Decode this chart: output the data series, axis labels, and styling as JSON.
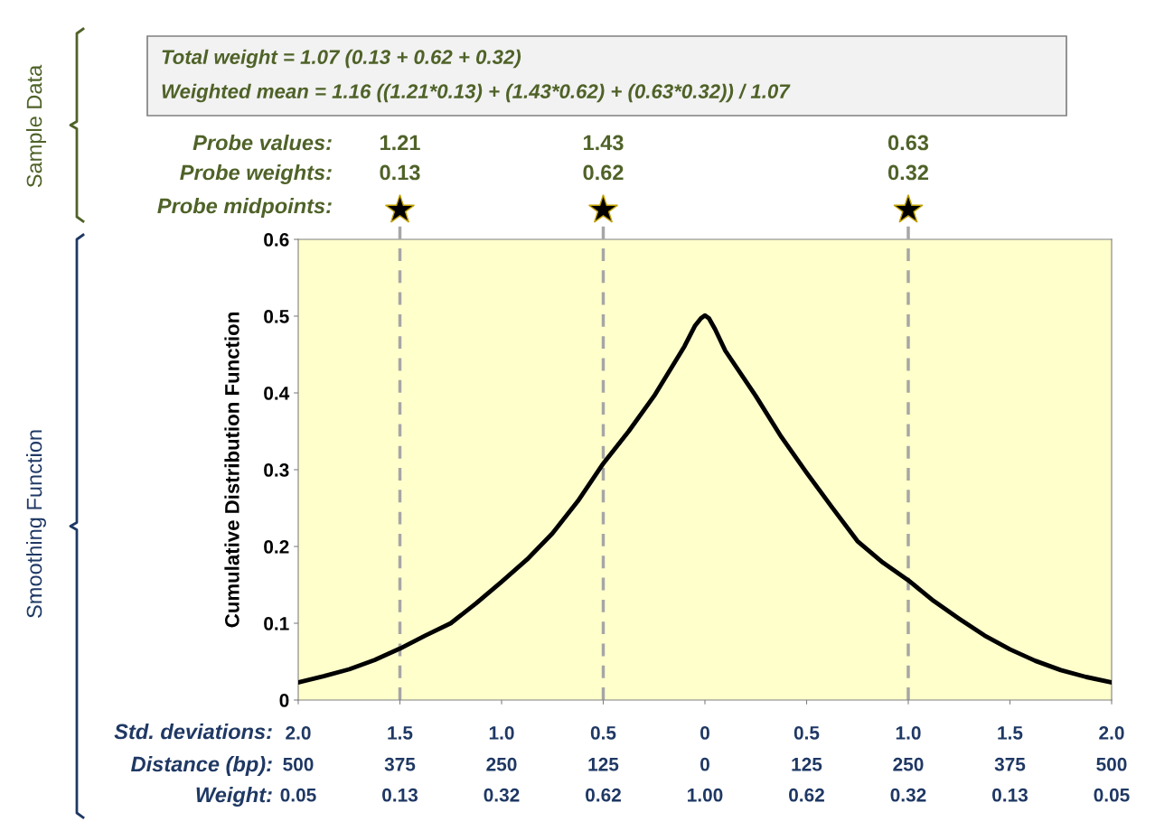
{
  "chart_data": {
    "type": "line",
    "ylabel": "Cumulative Distribution Function",
    "x": [
      -2,
      -1.875,
      -1.75,
      -1.625,
      -1.5,
      -1.375,
      -1.25,
      -1.125,
      -1,
      -0.875,
      -0.75,
      -0.625,
      -0.5,
      -0.375,
      -0.25,
      -0.1,
      -0.05,
      -0.02,
      0,
      0.02,
      0.05,
      0.1,
      0.25,
      0.375,
      0.5,
      0.625,
      0.75,
      0.875,
      1,
      1.125,
      1.25,
      1.375,
      1.5,
      1.625,
      1.75,
      1.875,
      2
    ],
    "series": [
      {
        "color": "#000000",
        "values": [
          0.023,
          0.031,
          0.04,
          0.052,
          0.067,
          0.084,
          0.1,
          0.126,
          0.154,
          0.183,
          0.217,
          0.259,
          0.308,
          0.35,
          0.396,
          0.461,
          0.487,
          0.497,
          0.501,
          0.497,
          0.483,
          0.455,
          0.396,
          0.343,
          0.296,
          0.251,
          0.207,
          0.179,
          0.156,
          0.129,
          0.106,
          0.084,
          0.066,
          0.051,
          0.039,
          0.03,
          0.023
        ]
      }
    ],
    "xlim": [
      -2,
      2
    ],
    "xticks": [
      {
        "value": -2,
        "label": "2.0"
      },
      {
        "value": -1.5,
        "label": "1.5"
      },
      {
        "value": -1,
        "label": "1.0"
      },
      {
        "value": -0.5,
        "label": "0.5"
      },
      0,
      0.5,
      {
        "value": 1,
        "label": "1.0"
      },
      1.5,
      {
        "value": 2,
        "label": "2.0"
      }
    ],
    "ylim": [
      0,
      0.6
    ],
    "yticks": [
      0,
      0.1,
      0.2,
      0.3,
      0.4,
      0.5,
      0.6
    ],
    "grid": false,
    "marker": "none",
    "line_style": "solid",
    "ref_lines": [
      {
        "axis": "x",
        "value": -1.5,
        "color": "#a6a6a6",
        "line_style": "dashed"
      },
      {
        "axis": "x",
        "value": -0.5,
        "color": "#a6a6a6",
        "line_style": "dashed"
      },
      {
        "axis": "x",
        "value": 1,
        "color": "#a6a6a6",
        "line_style": "dashed"
      }
    ],
    "annotations": [
      "Total weight = 1.07 (0.13 + 0.62 + 0.32)",
      "Weighted mean = 1.16 ((1.21*0.13) + (1.43*0.62) + (0.63*0.32)) / 1.07",
      "Probe values:",
      "Probe weights:",
      "Probe midpoints:",
      "1.21",
      "1.43",
      "0.63",
      "0.13",
      "0.62",
      "0.32",
      "Sample Data",
      "Smoothing Function",
      "Std. deviations:",
      "Distance (bp):",
      "Weight:",
      "500",
      "375",
      "250",
      "125",
      "0",
      "125",
      "250",
      "375",
      "500",
      "0.05",
      "0.13",
      "0.32",
      "0.62",
      "1.00",
      "0.62",
      "0.32",
      "0.13",
      "0.05"
    ]
  }
}
